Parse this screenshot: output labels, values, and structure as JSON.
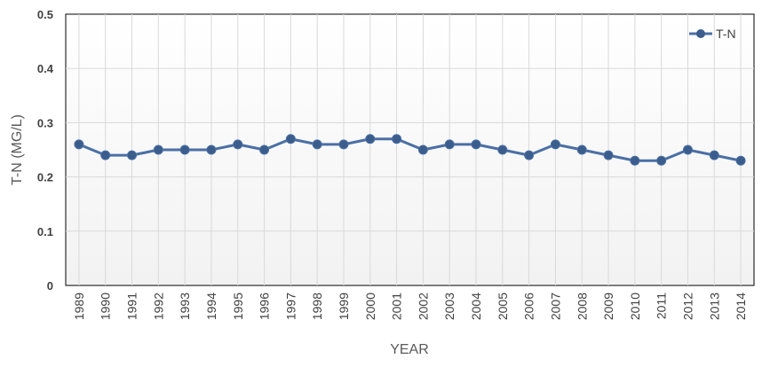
{
  "chart_data": {
    "type": "line",
    "title": "",
    "xlabel": "YEAR",
    "ylabel": "T-N (MG/L)",
    "categories": [
      "1989",
      "1990",
      "1991",
      "1992",
      "1993",
      "1994",
      "1995",
      "1996",
      "1997",
      "1998",
      "1999",
      "2000",
      "2001",
      "2002",
      "2003",
      "2004",
      "2005",
      "2006",
      "2007",
      "2008",
      "2009",
      "2010",
      "2011",
      "2012",
      "2013",
      "2014"
    ],
    "series": [
      {
        "name": "T-N",
        "values": [
          0.26,
          0.24,
          0.24,
          0.25,
          0.25,
          0.25,
          0.26,
          0.25,
          0.27,
          0.26,
          0.26,
          0.27,
          0.27,
          0.25,
          0.26,
          0.26,
          0.25,
          0.24,
          0.26,
          0.25,
          0.24,
          0.23,
          0.23,
          0.25,
          0.24,
          0.23
        ],
        "color": "#4a6fa5",
        "marker_color": "#3b5d8c"
      }
    ],
    "ylim": [
      0,
      0.5
    ],
    "yticks": [
      "0",
      "0.1",
      "0.2",
      "0.3",
      "0.4",
      "0.5"
    ],
    "ytick_values": [
      0,
      0.1,
      0.2,
      0.3,
      0.4,
      0.5
    ],
    "grid": true,
    "legend_position": "top-right",
    "plot_background": [
      "#ffffff",
      "#f2f2f2"
    ]
  }
}
